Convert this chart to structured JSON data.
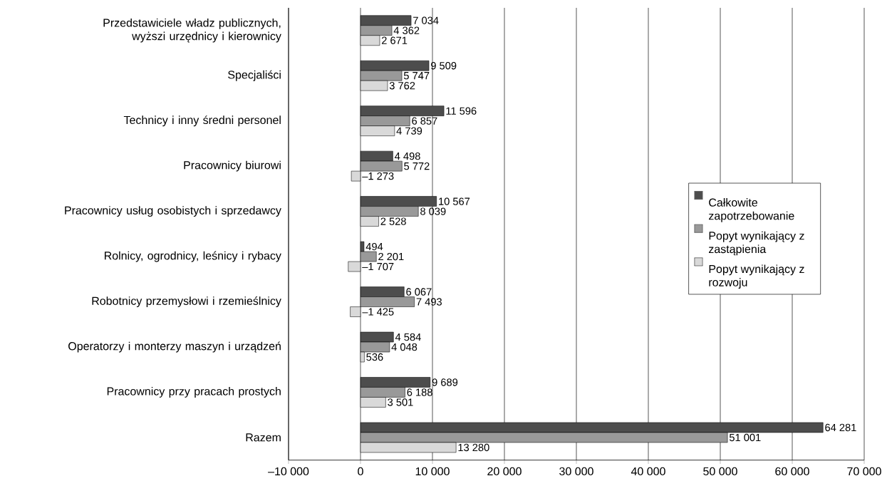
{
  "chart_data": {
    "type": "bar",
    "orientation": "horizontal",
    "categories": [
      "Przedstawiciele władz publicznych, wyższi urzędnicy i kierownicy",
      "Specjaliści",
      "Technicy i inny średni personel",
      "Pracownicy biurowi",
      "Pracownicy usług osobistych i sprzedawcy",
      "Rolnicy, ogrodnicy, leśnicy i rybacy",
      "Robotnicy przemysłowi i rzemieślnicy",
      "Operatorzy i monterzy maszyn i urządzeń",
      "Pracownicy przy pracach prostych",
      "Razem"
    ],
    "series": [
      {
        "name": "Całkowite zapotrzebowanie",
        "color": "#4d4d4d",
        "values": [
          7034,
          9509,
          11596,
          4498,
          10567,
          494,
          6067,
          4584,
          9689,
          64281
        ],
        "value_labels": [
          "7 034",
          "9 509",
          "11 596",
          "4 498",
          "10 567",
          "494",
          "6 067",
          "4 584",
          "9 689",
          "64 281"
        ]
      },
      {
        "name": "Popyt wynikający z zastąpienia",
        "color": "#999999",
        "values": [
          4362,
          5747,
          6857,
          5772,
          8039,
          2201,
          7493,
          4048,
          6188,
          51001
        ],
        "value_labels": [
          "4 362",
          "5 747",
          "6 857",
          "5 772",
          "8 039",
          "2 201",
          "7 493",
          "4 048",
          "6 188",
          "51 001"
        ]
      },
      {
        "name": "Popyt wynikający z rozwoju",
        "color": "#d9d9d9",
        "values": [
          2671,
          3762,
          4739,
          -1273,
          2528,
          -1707,
          -1425,
          536,
          3501,
          13280
        ],
        "value_labels": [
          "2 671",
          "3 762",
          "4 739",
          "–1 273",
          "2 528",
          "–1 707",
          "–1 425",
          "536",
          "3 501",
          "13 280"
        ]
      }
    ],
    "xlim": [
      -10000,
      70000
    ],
    "xticks": [
      {
        "value": -10000,
        "label": "–10 000"
      },
      {
        "value": 0,
        "label": "0"
      },
      {
        "value": 10000,
        "label": "10 000"
      },
      {
        "value": 20000,
        "label": "20 000"
      },
      {
        "value": 30000,
        "label": "30 000"
      },
      {
        "value": 40000,
        "label": "40 000"
      },
      {
        "value": 50000,
        "label": "50 000"
      },
      {
        "value": 60000,
        "label": "60 000"
      },
      {
        "value": 70000,
        "label": "70 000"
      }
    ],
    "grid": "x",
    "legend": "right"
  }
}
